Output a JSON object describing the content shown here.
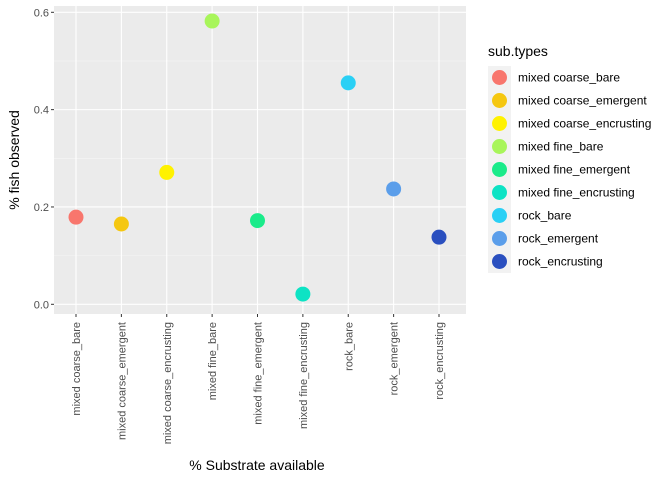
{
  "chart_data": {
    "type": "scatter",
    "xlabel": "% Substrate available",
    "ylabel": "% fish observed",
    "ylim": [
      0,
      0.6
    ],
    "y_ticks": [
      0.0,
      0.2,
      0.4,
      0.6
    ],
    "y_tick_labels": [
      "0.0",
      "0.2",
      "0.4",
      "0.6"
    ],
    "grid": true,
    "legend_title": "sub.types",
    "legend_position": "right",
    "categories": [
      "mixed coarse_bare",
      "mixed coarse_emergent",
      "mixed coarse_encrusting",
      "mixed fine_bare",
      "mixed fine_emergent",
      "mixed fine_encrusting",
      "rock_bare",
      "rock_emergent",
      "rock_encrusting"
    ],
    "values": [
      0.179,
      0.165,
      0.271,
      0.582,
      0.172,
      0.021,
      0.455,
      0.237,
      0.138
    ],
    "colors": [
      "#F8766D",
      "#F5C710",
      "#FFF200",
      "#A8F55A",
      "#1AEB8A",
      "#0DE3C4",
      "#2AD0F5",
      "#5B9EEA",
      "#2A4FBF"
    ]
  }
}
